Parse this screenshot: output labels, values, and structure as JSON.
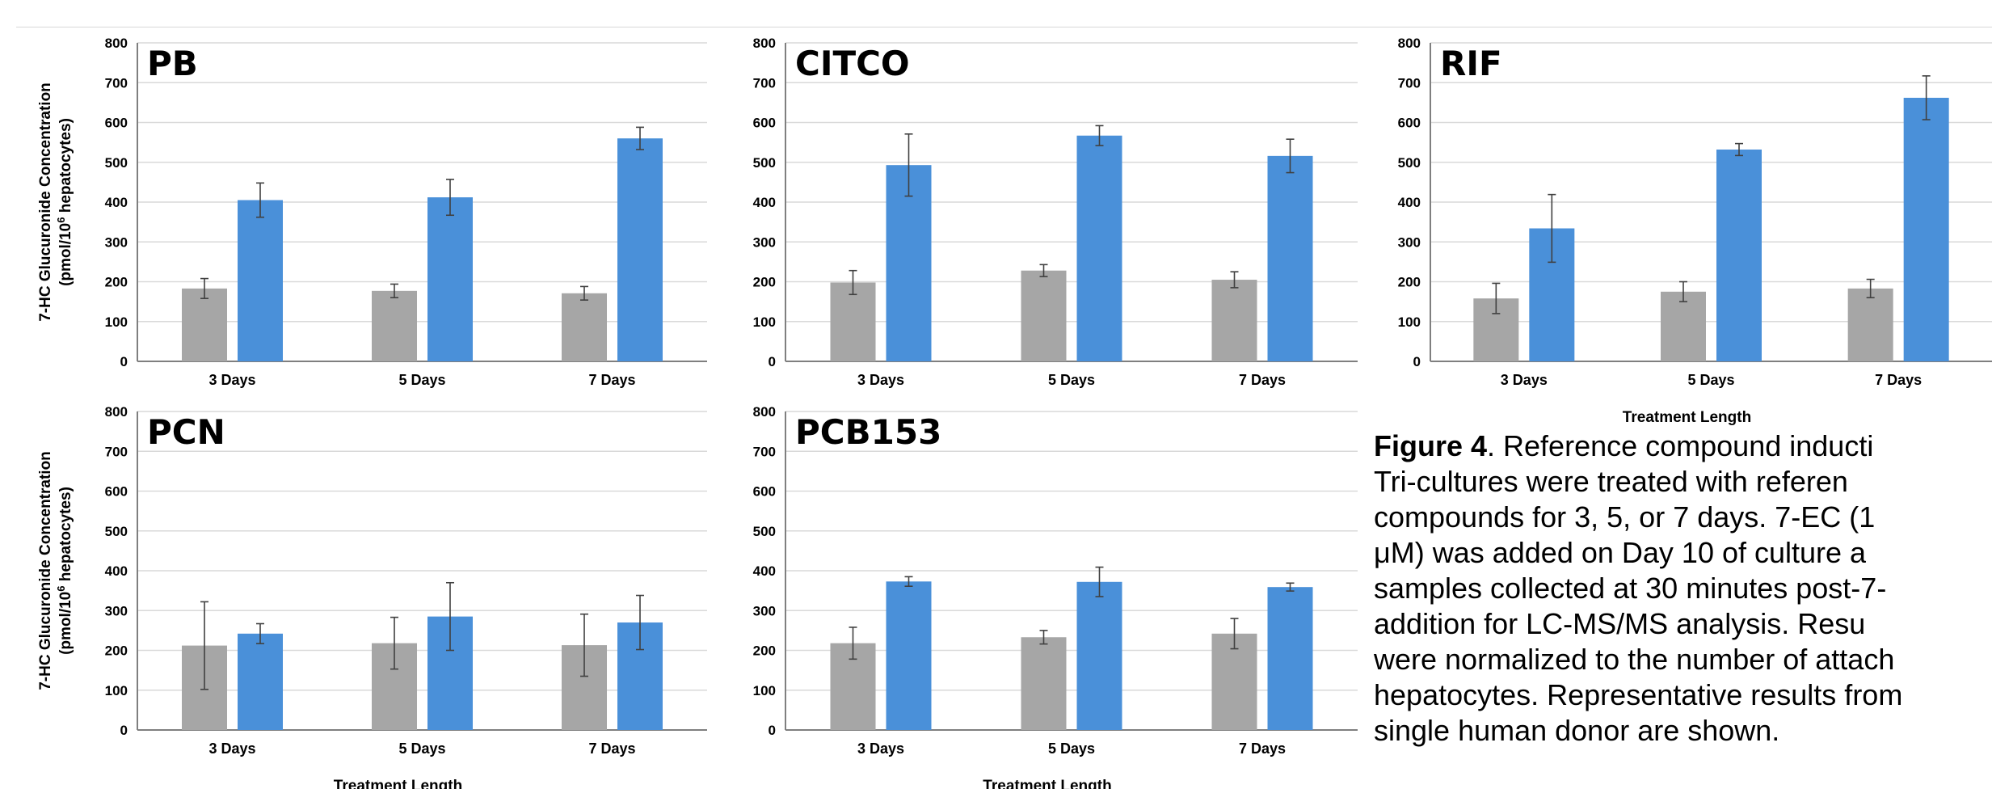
{
  "figure": {
    "colors": {
      "control": "#a6a6a6",
      "treated": "#4a90d9",
      "error": "#404040",
      "grid": "#d9d9d9",
      "axis": "#7f7f7f"
    },
    "ylabel_line1": "7-HC Glucuronide Concentration",
    "ylabel_line2_pre": "(pmol/10",
    "ylabel_line2_sup": "6",
    "ylabel_line2_post": " hepatocytes)",
    "xlabel": "Treatment Length"
  },
  "chart_data": [
    {
      "type": "bar",
      "title": "PB",
      "categories": [
        "3 Days",
        "5 Days",
        "7 Days"
      ],
      "ylim": [
        0,
        800
      ],
      "yticks": [
        0,
        100,
        200,
        300,
        400,
        500,
        600,
        700,
        800
      ],
      "grid": true,
      "series": [
        {
          "values": [
            183,
            177,
            171
          ],
          "errors": [
            25,
            17,
            17
          ]
        },
        {
          "values": [
            405,
            412,
            560
          ],
          "errors": [
            43,
            45,
            28
          ]
        }
      ],
      "show_ylabel": true,
      "show_xlabel": false
    },
    {
      "type": "bar",
      "title": "CITCO",
      "categories": [
        "3 Days",
        "5 Days",
        "7 Days"
      ],
      "ylim": [
        0,
        800
      ],
      "yticks": [
        0,
        100,
        200,
        300,
        400,
        500,
        600,
        700,
        800
      ],
      "grid": true,
      "series": [
        {
          "values": [
            198,
            228,
            205
          ],
          "errors": [
            30,
            15,
            20
          ]
        },
        {
          "values": [
            493,
            567,
            516
          ],
          "errors": [
            78,
            25,
            42
          ]
        }
      ],
      "show_ylabel": false,
      "show_xlabel": false
    },
    {
      "type": "bar",
      "title": "RIF",
      "categories": [
        "3 Days",
        "5 Days",
        "7 Days"
      ],
      "ylim": [
        0,
        800
      ],
      "yticks": [
        0,
        100,
        200,
        300,
        400,
        500,
        600,
        700,
        800
      ],
      "grid": true,
      "series": [
        {
          "values": [
            158,
            175,
            183
          ],
          "errors": [
            38,
            25,
            23
          ]
        },
        {
          "values": [
            334,
            532,
            662
          ],
          "errors": [
            85,
            15,
            55
          ]
        }
      ],
      "show_ylabel": false,
      "show_xlabel": true
    },
    {
      "type": "bar",
      "title": "PCN",
      "categories": [
        "3 Days",
        "5 Days",
        "7 Days"
      ],
      "ylim": [
        0,
        800
      ],
      "yticks": [
        0,
        100,
        200,
        300,
        400,
        500,
        600,
        700,
        800
      ],
      "grid": true,
      "series": [
        {
          "values": [
            212,
            218,
            213
          ],
          "errors": [
            110,
            65,
            78
          ]
        },
        {
          "values": [
            242,
            285,
            270
          ],
          "errors": [
            25,
            85,
            68
          ]
        }
      ],
      "show_ylabel": true,
      "show_xlabel": true
    },
    {
      "type": "bar",
      "title": "PCB153",
      "categories": [
        "3 Days",
        "5 Days",
        "7 Days"
      ],
      "ylim": [
        0,
        800
      ],
      "yticks": [
        0,
        100,
        200,
        300,
        400,
        500,
        600,
        700,
        800
      ],
      "grid": true,
      "series": [
        {
          "values": [
            218,
            233,
            242
          ],
          "errors": [
            40,
            17,
            38
          ]
        },
        {
          "values": [
            373,
            372,
            359
          ],
          "errors": [
            12,
            37,
            10
          ]
        }
      ],
      "show_ylabel": false,
      "show_xlabel": true
    }
  ],
  "caption": {
    "label": "Figure 4",
    "line1": ". Reference compound inducti",
    "line2": "Tri-cultures were treated with referen",
    "line3": "compounds for 3, 5, or 7 days. 7-EC (1",
    "line4": "μM) was added on Day 10 of culture a",
    "line5": "samples collected at 30 minutes post-7-",
    "line6": "addition for LC-MS/MS analysis. Resu",
    "line7": "were normalized to the number of attach",
    "line8": "hepatocytes. Representative results from",
    "line9": "single human donor are shown."
  }
}
